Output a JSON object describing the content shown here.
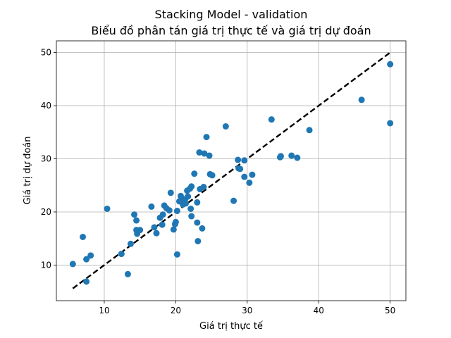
{
  "chart_data": {
    "type": "scatter",
    "title": "Stacking Model - validation",
    "subtitle": "Biểu đồ phân tán giá trị thực tế và giá trị dự đoán",
    "xlabel": "Giá trị thực tế",
    "ylabel": "Giá trị dự đoán",
    "xlim": [
      3.3,
      52.2
    ],
    "ylim": [
      3.3,
      52.2
    ],
    "xticks": [
      10,
      20,
      30,
      40,
      50
    ],
    "yticks": [
      10,
      20,
      30,
      40,
      50
    ],
    "grid": true,
    "point_color": "#1f77b4",
    "reference_line": {
      "x": [
        5.6,
        50
      ],
      "y": [
        5.6,
        50
      ],
      "style": "dashed",
      "color": "#000000"
    },
    "points": [
      [
        5.6,
        10.2
      ],
      [
        7.0,
        15.3
      ],
      [
        7.5,
        11.1
      ],
      [
        7.5,
        6.9
      ],
      [
        8.1,
        11.8
      ],
      [
        10.4,
        20.6
      ],
      [
        12.4,
        12.1
      ],
      [
        13.3,
        8.3
      ],
      [
        13.7,
        14.0
      ],
      [
        14.2,
        19.5
      ],
      [
        14.5,
        18.4
      ],
      [
        14.5,
        16.6
      ],
      [
        14.6,
        15.9
      ],
      [
        15.0,
        16.6
      ],
      [
        16.6,
        21.0
      ],
      [
        17.0,
        17.1
      ],
      [
        17.3,
        16.0
      ],
      [
        17.8,
        18.9
      ],
      [
        18.1,
        17.6
      ],
      [
        18.2,
        19.5
      ],
      [
        18.4,
        21.2
      ],
      [
        18.7,
        20.7
      ],
      [
        19.1,
        20.3
      ],
      [
        19.3,
        23.6
      ],
      [
        19.7,
        16.7
      ],
      [
        19.9,
        17.7
      ],
      [
        20.0,
        18.1
      ],
      [
        20.2,
        20.2
      ],
      [
        20.2,
        12.0
      ],
      [
        20.5,
        22.0
      ],
      [
        20.7,
        23.0
      ],
      [
        20.8,
        22.1
      ],
      [
        21.0,
        21.4
      ],
      [
        21.3,
        22.4
      ],
      [
        21.4,
        21.6
      ],
      [
        21.6,
        24.0
      ],
      [
        21.7,
        22.9
      ],
      [
        22.0,
        24.4
      ],
      [
        22.1,
        20.6
      ],
      [
        22.2,
        24.8
      ],
      [
        22.2,
        19.2
      ],
      [
        22.6,
        27.2
      ],
      [
        23.0,
        21.8
      ],
      [
        23.0,
        18.0
      ],
      [
        23.1,
        14.5
      ],
      [
        23.3,
        31.2
      ],
      [
        23.4,
        24.3
      ],
      [
        23.7,
        16.9
      ],
      [
        23.9,
        24.7
      ],
      [
        24.0,
        31.0
      ],
      [
        24.3,
        34.1
      ],
      [
        24.7,
        30.6
      ],
      [
        24.8,
        27.1
      ],
      [
        25.1,
        26.9
      ],
      [
        27.0,
        36.1
      ],
      [
        28.1,
        22.1
      ],
      [
        28.7,
        29.8
      ],
      [
        28.8,
        28.2
      ],
      [
        29.0,
        28.1
      ],
      [
        29.6,
        29.7
      ],
      [
        29.6,
        26.6
      ],
      [
        30.3,
        25.5
      ],
      [
        30.7,
        27.0
      ],
      [
        33.4,
        37.4
      ],
      [
        34.6,
        30.3
      ],
      [
        34.7,
        30.5
      ],
      [
        36.2,
        30.6
      ],
      [
        37.0,
        30.2
      ],
      [
        38.7,
        35.4
      ],
      [
        46.0,
        41.1
      ],
      [
        50.0,
        47.8
      ],
      [
        50.0,
        36.7
      ]
    ]
  }
}
